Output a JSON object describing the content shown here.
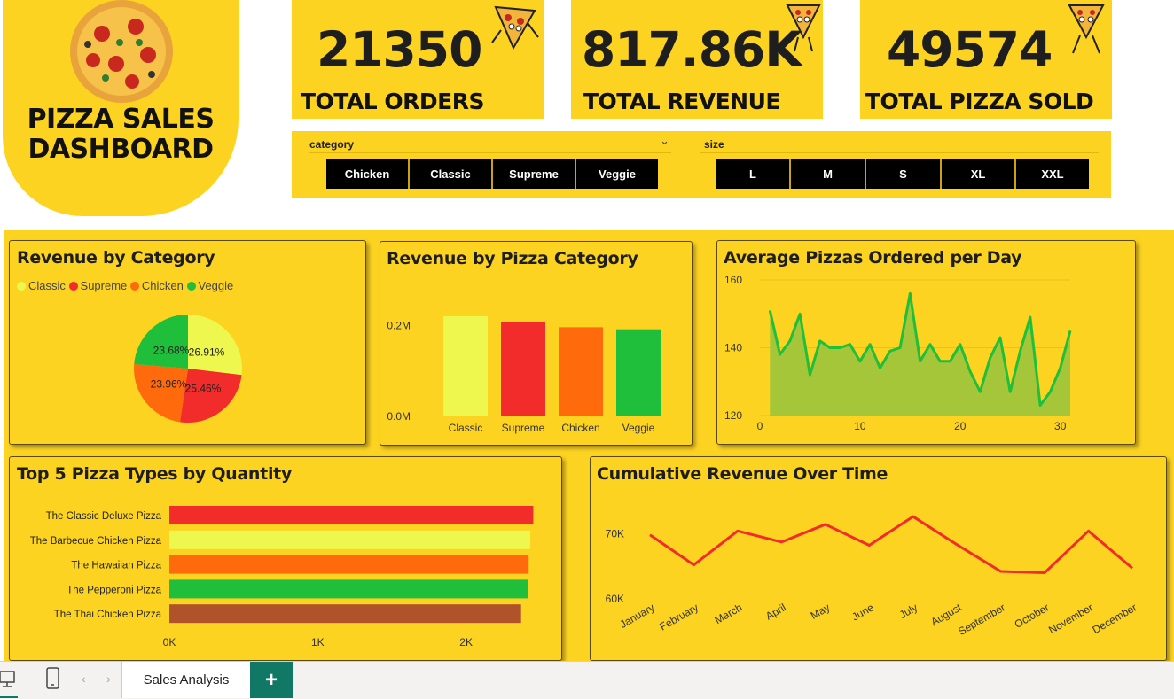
{
  "logo": {
    "title_line1": "PIZZA SALES",
    "title_line2": "DASHBOARD"
  },
  "kpis": [
    {
      "value": "21350",
      "label": "TOTAL ORDERS"
    },
    {
      "value": "817.86K",
      "label": "TOTAL REVENUE"
    },
    {
      "value": "49574",
      "label": "TOTAL PIZZA SOLD"
    }
  ],
  "slicers": {
    "category": {
      "title": "category",
      "options": [
        "Chicken",
        "Classic",
        "Supreme",
        "Veggie"
      ]
    },
    "size": {
      "title": "size",
      "options": [
        "L",
        "M",
        "S",
        "XL",
        "XXL"
      ]
    }
  },
  "colors": {
    "classic": "#eef74e",
    "supreme": "#f22b2b",
    "chicken": "#ff6a0d",
    "veggie": "#1fbf3b",
    "brown": "#b0532b",
    "background": "#fdd321"
  },
  "footer": {
    "tab_label": "Sales Analysis",
    "add_label": "+"
  },
  "chart_data": [
    {
      "id": "revenue_by_category",
      "type": "pie",
      "title": "Revenue by Category",
      "legend": [
        "Classic",
        "Supreme",
        "Chicken",
        "Veggie"
      ],
      "slices": [
        {
          "label": "Classic",
          "value": 26.91,
          "text": "26.91%"
        },
        {
          "label": "Supreme",
          "value": 25.46,
          "text": "25.46%"
        },
        {
          "label": "Chicken",
          "value": 23.96,
          "text": "23.96%"
        },
        {
          "label": "Veggie",
          "value": 23.68,
          "text": "23.68%"
        }
      ]
    },
    {
      "id": "revenue_by_pizza_category",
      "type": "bar",
      "title": "Revenue by Pizza Category",
      "categories": [
        "Classic",
        "Supreme",
        "Chicken",
        "Veggie"
      ],
      "values": [
        220053,
        208197,
        195920,
        191388
      ],
      "ylim": [
        0,
        220000
      ],
      "yticks": [
        {
          "v": 0,
          "label": "0.0M"
        },
        {
          "v": 200000,
          "label": "0.2M"
        }
      ]
    },
    {
      "id": "avg_pizzas_per_day",
      "type": "area",
      "title": "Average Pizzas Ordered per Day",
      "x": [
        1,
        2,
        3,
        4,
        5,
        6,
        7,
        8,
        9,
        10,
        11,
        12,
        13,
        14,
        15,
        16,
        17,
        18,
        19,
        20,
        21,
        22,
        23,
        24,
        25,
        26,
        27,
        28,
        29,
        30,
        31
      ],
      "values": [
        151,
        138,
        142,
        150,
        132,
        142,
        140,
        140,
        141,
        136,
        141,
        134,
        139,
        140,
        156,
        136,
        141,
        136,
        136,
        141,
        133,
        127,
        137,
        143,
        127,
        139,
        149,
        123,
        127,
        134,
        145
      ],
      "xlim": [
        0,
        31
      ],
      "ylim": [
        120,
        160
      ],
      "xticks": [
        0,
        10,
        20,
        30
      ],
      "yticks": [
        120,
        140,
        160
      ]
    },
    {
      "id": "top5_pizza_types",
      "type": "bar",
      "orientation": "horizontal",
      "title": "Top 5 Pizza Types by Quantity",
      "categories": [
        "The Classic Deluxe Pizza",
        "The Barbecue Chicken Pizza",
        "The Hawaiian Pizza",
        "The Pepperoni Pizza",
        "The Thai Chicken Pizza"
      ],
      "values": [
        2453,
        2432,
        2422,
        2418,
        2371
      ],
      "xlim": [
        0,
        2600
      ],
      "xticks": [
        {
          "v": 0,
          "label": "0K"
        },
        {
          "v": 1000,
          "label": "1K"
        },
        {
          "v": 2000,
          "label": "2K"
        }
      ]
    },
    {
      "id": "cumulative_revenue",
      "type": "line",
      "title": "Cumulative Revenue Over Time",
      "categories": [
        "January",
        "February",
        "March",
        "April",
        "May",
        "June",
        "July",
        "August",
        "September",
        "October",
        "November",
        "December"
      ],
      "values": [
        69800,
        65200,
        70400,
        68700,
        71400,
        68200,
        72600,
        68300,
        64200,
        64000,
        70400,
        64700
      ],
      "ylim": [
        60000,
        76000
      ],
      "yticks": [
        {
          "v": 60000,
          "label": "60K"
        },
        {
          "v": 70000,
          "label": "70K"
        }
      ]
    }
  ]
}
